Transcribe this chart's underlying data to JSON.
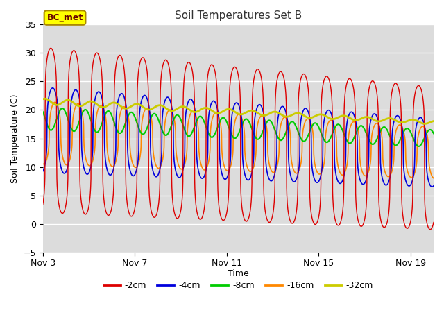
{
  "title": "Soil Temperatures Set B",
  "xlabel": "Time",
  "ylabel": "Soil Temperature (C)",
  "ylim": [
    -5,
    35
  ],
  "yticks": [
    -5,
    0,
    5,
    10,
    15,
    20,
    25,
    30,
    35
  ],
  "x_tick_labels": [
    "Nov 3",
    "Nov 7",
    "Nov 11",
    "Nov 15",
    "Nov 19"
  ],
  "x_tick_positions": [
    0,
    4,
    8,
    12,
    16
  ],
  "annotation_text": "BC_met",
  "bg_color": "#dcdcdc",
  "fig_bg_color": "#ffffff",
  "colors": {
    "-2cm": "#dd0000",
    "-4cm": "#0000dd",
    "-8cm": "#00cc00",
    "-16cm": "#ff8800",
    "-32cm": "#cccc00"
  },
  "legend_labels": [
    "-2cm",
    "-4cm",
    "-8cm",
    "-16cm",
    "-32cm"
  ],
  "total_days": 17,
  "n_points": 1700,
  "grid_color": "#ffffff",
  "annotation_fg": "#660000",
  "annotation_bg": "#ffff00",
  "annotation_edge": "#aa8800"
}
